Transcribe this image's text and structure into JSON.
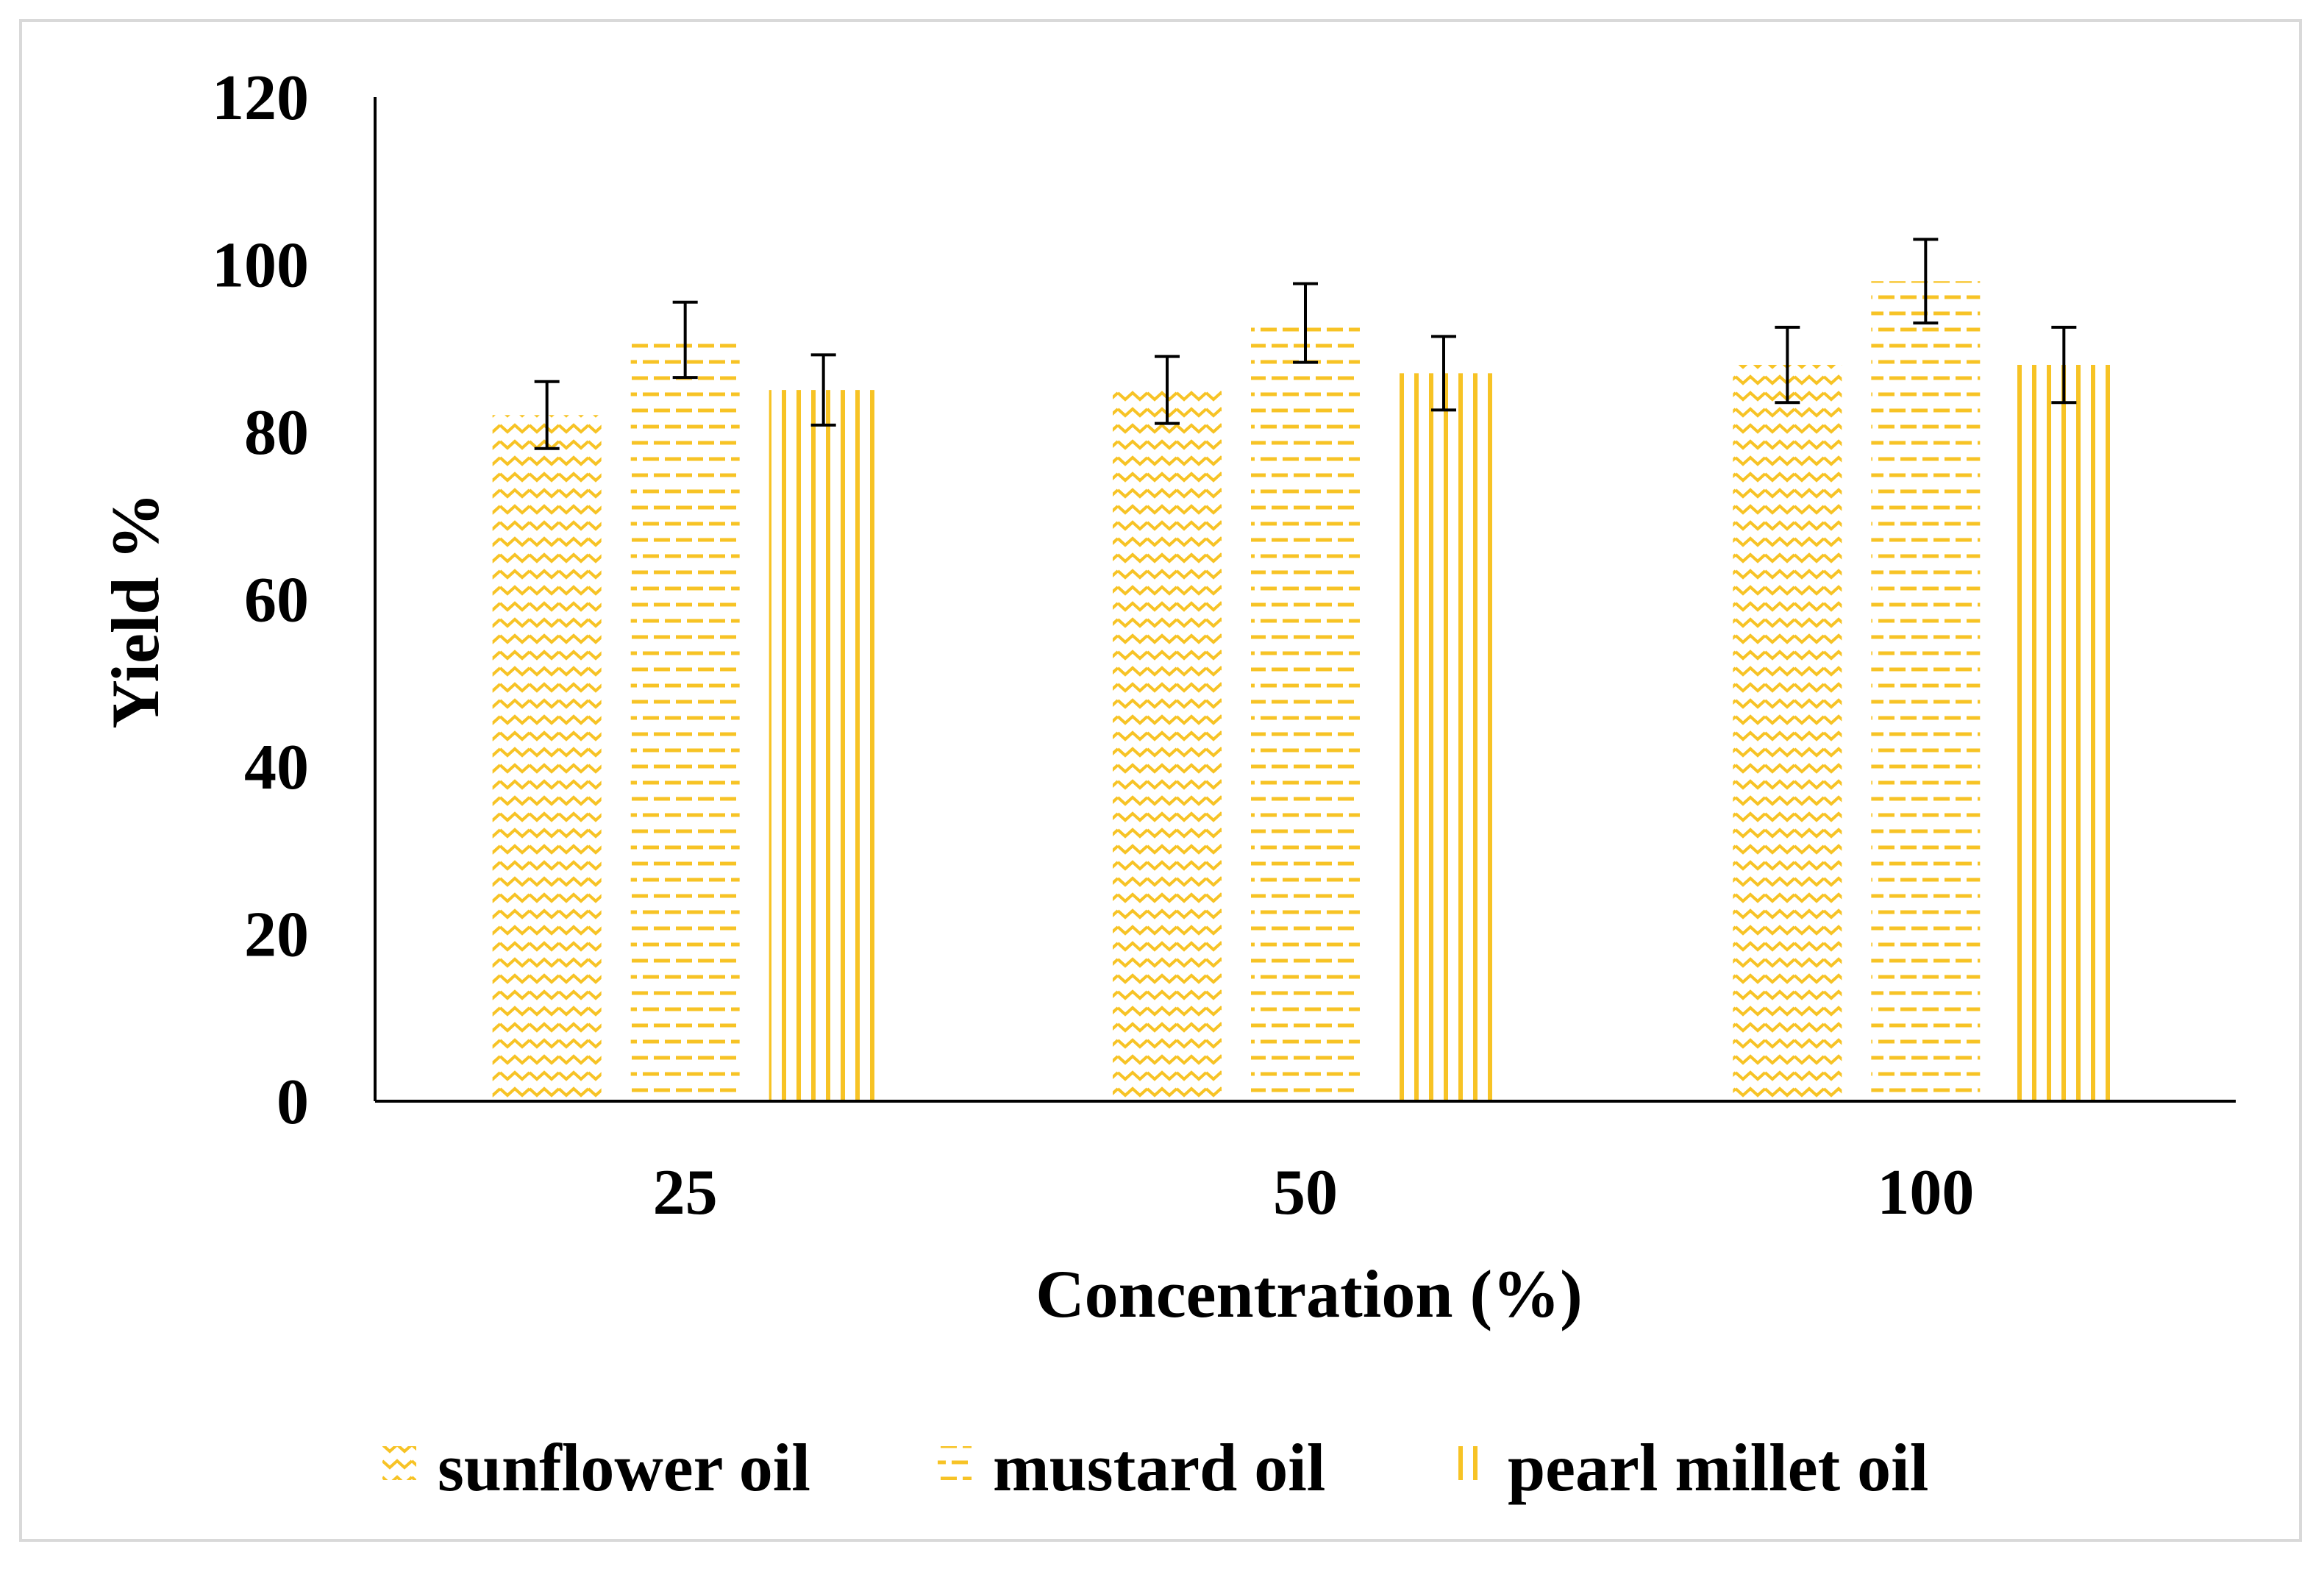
{
  "chart_data": {
    "type": "bar",
    "title": "",
    "xlabel": "Concentration (%)",
    "ylabel": "Yield %",
    "ylim": [
      0,
      120
    ],
    "yticks": [
      0,
      20,
      40,
      60,
      80,
      100,
      120
    ],
    "categories": [
      "25",
      "50",
      "100"
    ],
    "series": [
      {
        "name": "sunflower oil",
        "pattern": "zigzag",
        "values": [
          82,
          85,
          88
        ],
        "errors": [
          4,
          4,
          4.5
        ]
      },
      {
        "name": "mustard oil",
        "pattern": "dashes",
        "values": [
          91,
          93,
          98
        ],
        "errors": [
          4.5,
          4.7,
          5
        ]
      },
      {
        "name": "pearl millet oil",
        "pattern": "vertical-lines",
        "values": [
          85,
          87,
          88
        ],
        "errors": [
          4.2,
          4.4,
          4.5
        ]
      }
    ],
    "legend_position": "bottom",
    "grid": false
  },
  "colors": {
    "bar_pattern": "#f7c325",
    "axis": "#000000",
    "error_bar": "#000000",
    "frame_border": "#d9d9d9"
  }
}
